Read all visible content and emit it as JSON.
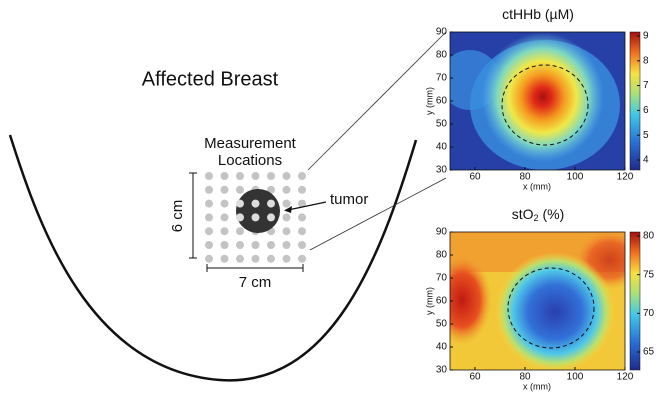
{
  "title": "Affected Breast",
  "measurement_label": [
    "Measurement",
    "Locations"
  ],
  "tumor_label": "tumor",
  "height_label": "6 cm",
  "width_label": "7 cm",
  "maps": [
    {
      "title": [
        "ctHHb (µM)"
      ],
      "x_label": "x (mm)",
      "y_label": "y (mm)",
      "xticks": [
        60,
        80,
        100,
        120
      ],
      "yticks": [
        90,
        80,
        70,
        60,
        50,
        40,
        30
      ],
      "colorbar_ticks": [
        9,
        8,
        7,
        6,
        5,
        4
      ]
    },
    {
      "title": [
        "stO",
        "2",
        " (%)"
      ],
      "x_label": "x (mm)",
      "y_label": "y (mm)",
      "xticks": [
        60,
        80,
        100,
        120
      ],
      "yticks": [
        90,
        80,
        70,
        60,
        50,
        40,
        30
      ],
      "colorbar_ticks": [
        80,
        75,
        70,
        65
      ]
    }
  ]
}
